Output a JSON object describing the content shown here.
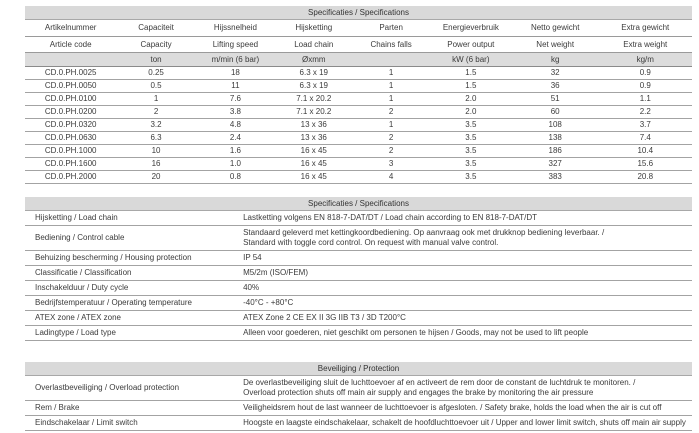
{
  "colors": {
    "header_bar": "#d9d9d9",
    "units_row_bg": "#dcdcdc",
    "row_line": "#a3a3a3",
    "text": "#3b3b3b"
  },
  "table1": {
    "title": "Specificaties / Specifications",
    "header_nl": [
      "Artikelnummer",
      "Capaciteit",
      "Hijssnelheid",
      "Hijsketting",
      "Parten",
      "Energieverbruik",
      "Netto gewicht",
      "Extra gewicht"
    ],
    "header_en": [
      "Article code",
      "Capacity",
      "Lifting speed",
      "Load chain",
      "Chains falls",
      "Power output",
      "Net weight",
      "Extra weight"
    ],
    "units": [
      "",
      "ton",
      "m/min (6 bar)",
      "Øxmm",
      "",
      "kW (6 bar)",
      "kg",
      "kg/m"
    ],
    "rows": [
      [
        "CD.0.PH.0025",
        "0.25",
        "18",
        "6.3 x 19",
        "1",
        "1.5",
        "32",
        "0.9"
      ],
      [
        "CD.0.PH.0050",
        "0.5",
        "11",
        "6.3 x 19",
        "1",
        "1.5",
        "36",
        "0.9"
      ],
      [
        "CD.0.PH.0100",
        "1",
        "7.6",
        "7.1 x 20.2",
        "1",
        "2.0",
        "51",
        "1.1"
      ],
      [
        "CD.0.PH.0200",
        "2",
        "3.8",
        "7.1 x 20.2",
        "2",
        "2.0",
        "60",
        "2.2"
      ],
      [
        "CD.0.PH.0320",
        "3.2",
        "4.8",
        "13 x 36",
        "1",
        "3.5",
        "108",
        "3.7"
      ],
      [
        "CD.0.PH.0630",
        "6.3",
        "2.4",
        "13 x 36",
        "2",
        "3.5",
        "138",
        "7.4"
      ],
      [
        "CD.0.PH.1000",
        "10",
        "1.6",
        "16 x 45",
        "2",
        "3.5",
        "186",
        "10.4"
      ],
      [
        "CD.0.PH.1600",
        "16",
        "1.0",
        "16 x 45",
        "3",
        "3.5",
        "327",
        "15.6"
      ],
      [
        "CD.0.PH.2000",
        "20",
        "0.8",
        "16 x 45",
        "4",
        "3.5",
        "383",
        "20.8"
      ]
    ]
  },
  "table2": {
    "title": "Specificaties / Specifications",
    "rows": [
      {
        "label": "Hijsketting / Load chain",
        "value": "Lastketting volgens EN 818-7-DAT/DT / Load chain according to EN 818-7-DAT/DT"
      },
      {
        "label": "Bediening / Control cable",
        "value": [
          "Standaard geleverd met kettingkoordbediening. Op aanvraag ook met drukknop bediening leverbaar. /",
          "Standard with toggle cord control. On request with manual valve control."
        ]
      },
      {
        "label": "Behuizing bescherming / Housing protection",
        "value": "IP 54"
      },
      {
        "label": "Classificatie / Classification",
        "value": "M5/2m (ISO/FEM)"
      },
      {
        "label": "Inschakelduur / Duty cycle",
        "value": "40%"
      },
      {
        "label": "Bedrijfstemperatuur / Operating temperature",
        "value": "-40°C  -  +80°C"
      },
      {
        "label": "ATEX zone / ATEX zone",
        "value": "ATEX Zone 2 CE EX II 3G IIB T3 / 3D T200°C"
      },
      {
        "label": "Ladingtype / Load type",
        "value": "Alleen voor goederen, niet geschikt om personen te hijsen / Goods, may not be used to lift people"
      }
    ]
  },
  "table3": {
    "title": "Beveiliging / Protection",
    "rows": [
      {
        "label": "Overlastbeveiliging / Overload protection",
        "value": [
          "De overlastbeveiliging  sluit de luchttoevoer af en activeert de rem door de constant de luchtdruk te monitoren. /",
          "Overload protection shuts off main air supply and engages the brake by monitoring the air pressure"
        ]
      },
      {
        "label": "Rem / Brake",
        "value": "Veiligheidsrem hout de last wanneer de luchttoevoer is afgesloten. / Safety brake, holds the load when the air is cut off"
      },
      {
        "label": "Eindschakelaar / Limit switch",
        "value": "Hoogste en laagste eindschakelaar, schakelt de hoofdluchttoevoer uit / Upper and lower limit switch, shuts off main air supply"
      }
    ]
  }
}
